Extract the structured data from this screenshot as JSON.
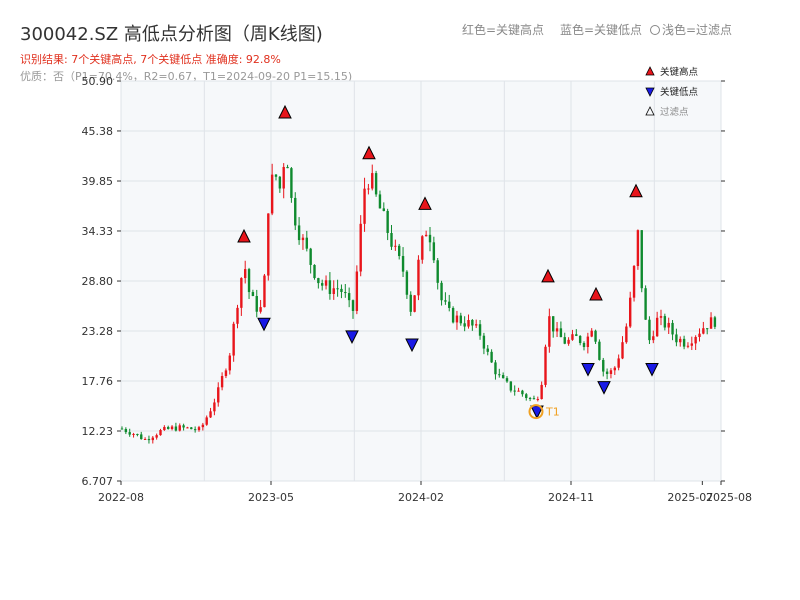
{
  "header": {
    "title": "300042.SZ 高低点分析图（周K线图)",
    "result_text": "识别结果: 7个关键高点, 7个关键低点   准确度: 92.8%",
    "quality_text": "优质：否（P1=70.4%，R2=0.67，T1=2024-09-20 P1=15.15)",
    "legend_red": "红色=关键高点",
    "legend_blue": "蓝色=关键低点",
    "legend_gray": "浅色=过滤点"
  },
  "chart_data": {
    "type": "candlestick",
    "y_ticks": [
      "6.707",
      "12.23",
      "17.76",
      "23.28",
      "28.80",
      "34.33",
      "39.85",
      "45.38",
      "50.90"
    ],
    "ylim": [
      6.707,
      50.9
    ],
    "x_ticks": [
      "2022-08",
      "2023-05",
      "2024-02",
      "2024-11",
      "2025-07",
      "2025-08"
    ],
    "grid": true,
    "legend": {
      "position": "top-right",
      "entries": [
        {
          "label": "关键高点",
          "marker": "triangle-up",
          "color": "#e8151b"
        },
        {
          "label": "关键低点",
          "marker": "triangle-down",
          "color": "#1a1ae6"
        },
        {
          "label": "过滤点",
          "marker": "triangle-up-hollow",
          "color": "#888888"
        }
      ]
    },
    "key_highs": [
      {
        "x": "2023-03",
        "y": 33.0
      },
      {
        "x": "2023-05",
        "y": 46.7
      },
      {
        "x": "2023-11",
        "y": 42.2
      },
      {
        "x": "2024-02",
        "y": 36.6
      },
      {
        "x": "2024-09",
        "y": 28.6
      },
      {
        "x": "2025-01",
        "y": 26.6
      },
      {
        "x": "2025-04",
        "y": 38.0
      }
    ],
    "key_lows": [
      {
        "x": "2023-04",
        "y": 24.8
      },
      {
        "x": "2023-09",
        "y": 23.4
      },
      {
        "x": "2024-01",
        "y": 22.5
      },
      {
        "x": "2024-09",
        "y": 15.1
      },
      {
        "x": "2024-12",
        "y": 19.8
      },
      {
        "x": "2025-01",
        "y": 17.8
      },
      {
        "x": "2025-05",
        "y": 19.8
      }
    ],
    "annotation": {
      "label": "T1",
      "x": "2024-09",
      "y": 15.15,
      "color": "#f0a020"
    },
    "colors": {
      "up": "#e8151b",
      "down": "#0f8a2e",
      "high_marker": "#e8151b",
      "low_marker": "#1a1ae6",
      "annotation": "#f0a020"
    }
  }
}
